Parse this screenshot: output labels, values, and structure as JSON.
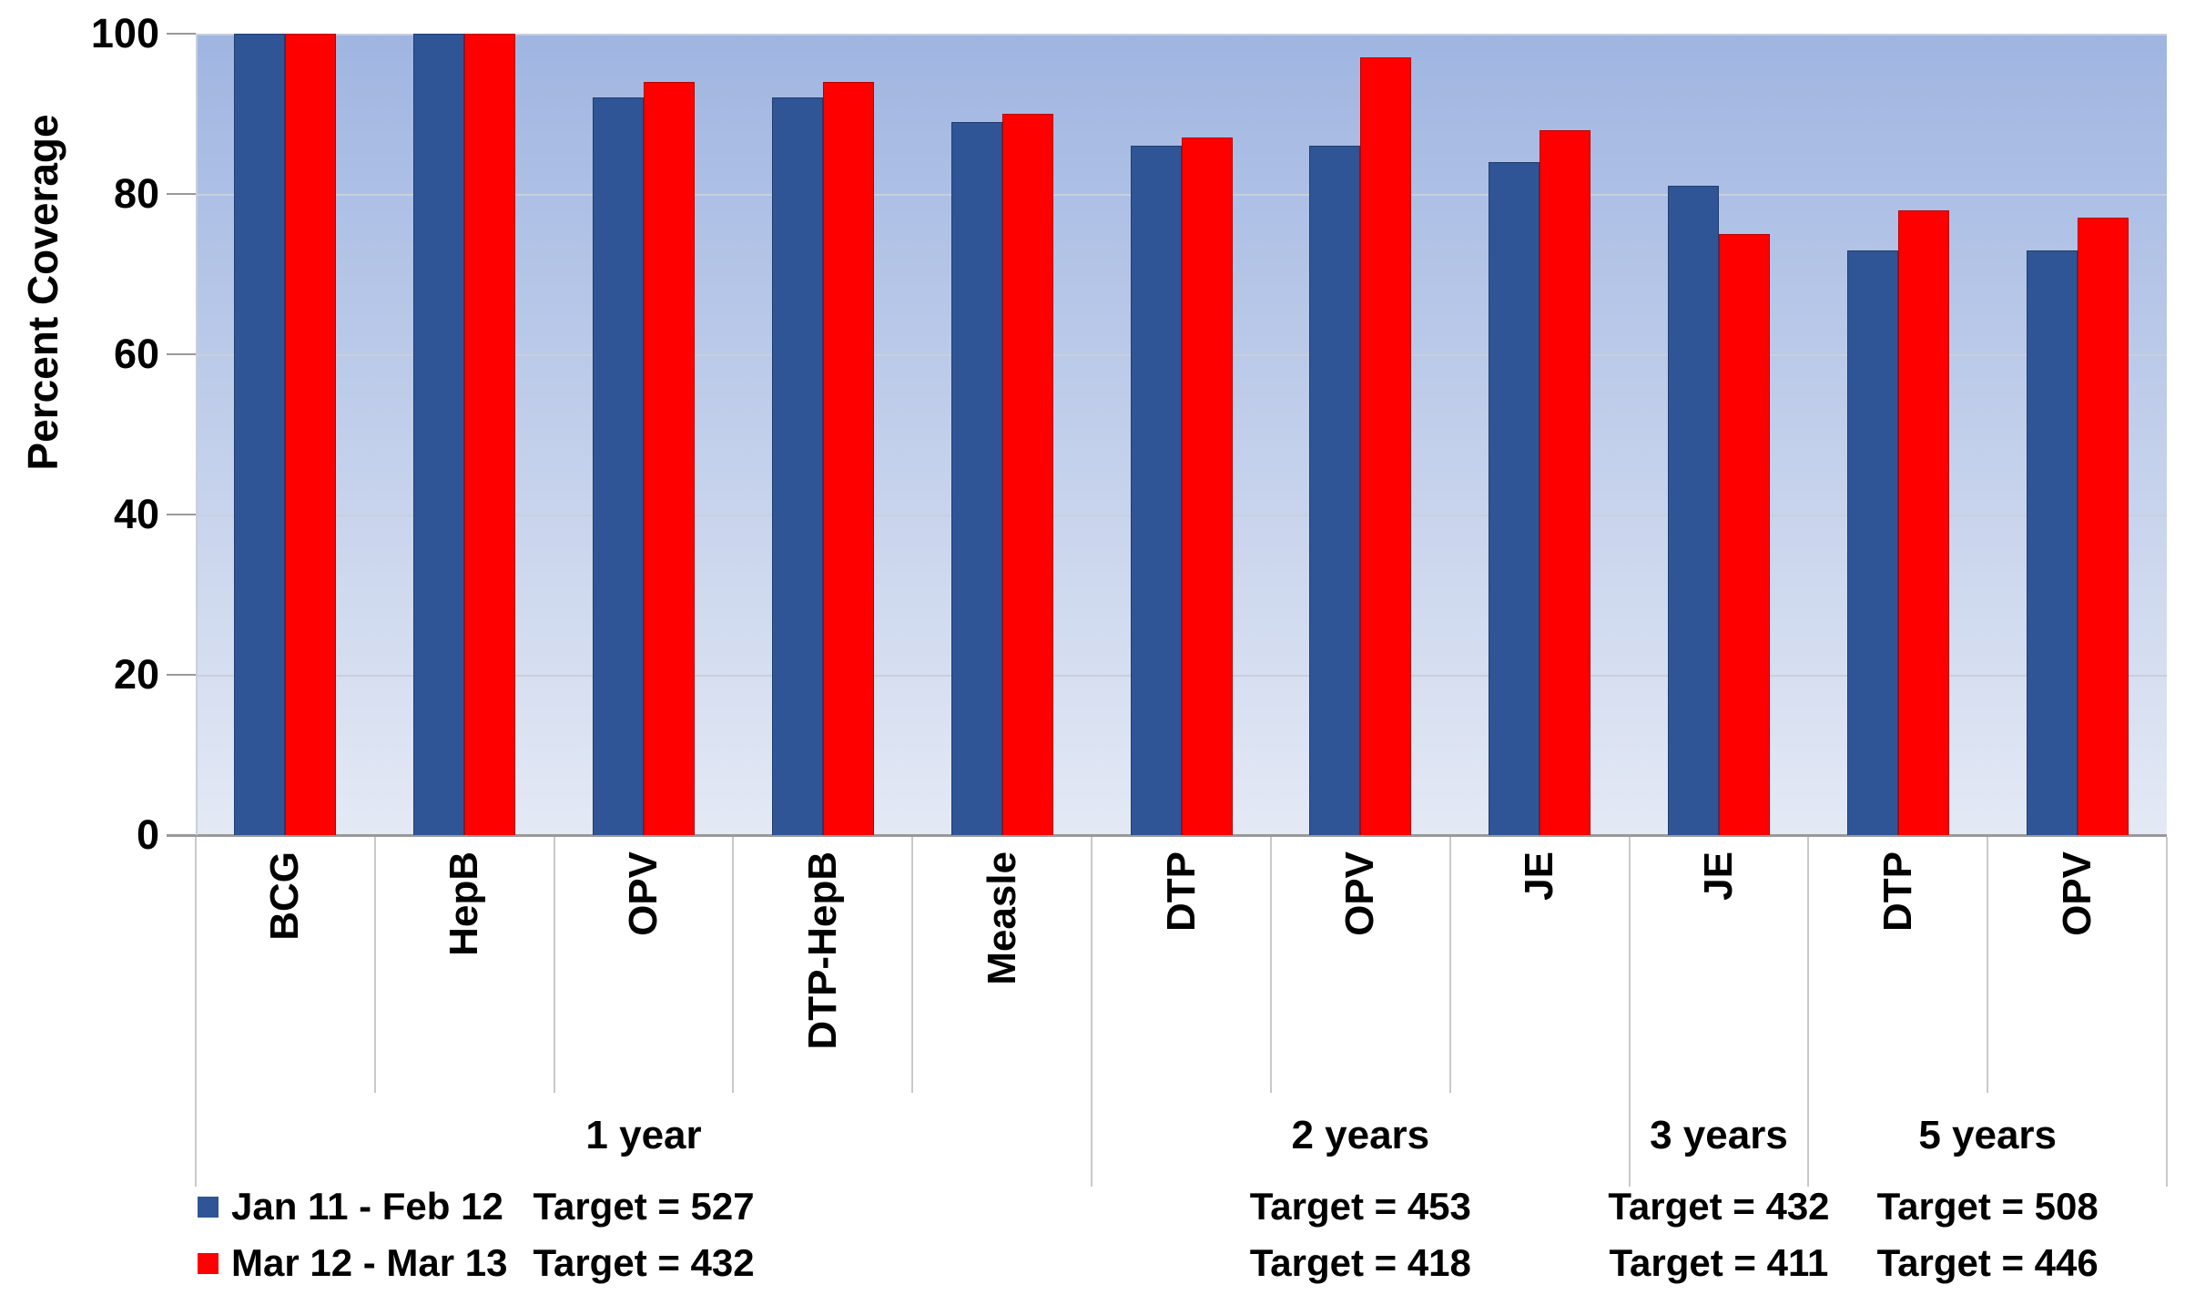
{
  "chart_data": {
    "type": "bar",
    "title": "",
    "ylabel": "Percent Coverage",
    "xlabel": "",
    "ylim": [
      0,
      100
    ],
    "yticks": [
      0,
      20,
      40,
      60,
      80,
      100
    ],
    "grid": true,
    "legend_position": "bottom-left",
    "categories": [
      "BCG",
      "HepB",
      "OPV",
      "DTP-HepB",
      "Measle",
      "DTP",
      "OPV",
      "JE",
      "JE",
      "DTP",
      "OPV"
    ],
    "series": [
      {
        "name": "Jan 11 - Feb 12",
        "color": "#2F5597",
        "values": [
          100,
          100,
          92,
          92,
          89,
          86,
          86,
          84,
          81,
          73,
          73
        ]
      },
      {
        "name": "Mar 12 - Mar 13",
        "color": "#FF0000",
        "values": [
          100,
          100,
          94,
          94,
          90,
          87,
          97,
          88,
          75,
          78,
          77
        ]
      }
    ],
    "groups": [
      {
        "label": "1 year",
        "span": 5,
        "targets": [
          "Target = 527",
          "Target = 432"
        ]
      },
      {
        "label": "2 years",
        "span": 3,
        "targets": [
          "Target = 453",
          "Target = 418"
        ]
      },
      {
        "label": "3 years",
        "span": 1,
        "targets": [
          "Target = 432",
          "Target = 411"
        ]
      },
      {
        "label": "5 years",
        "span": 2,
        "targets": [
          "Target = 508",
          "Target = 446"
        ]
      }
    ],
    "colors": {
      "plot_bg_top": "#9FB5E1",
      "plot_bg_bottom": "#E4E9F5",
      "gridline": "#C9CFDA",
      "axis_line": "#999999",
      "separator": "#C9C9C9",
      "text": "#000000"
    }
  }
}
